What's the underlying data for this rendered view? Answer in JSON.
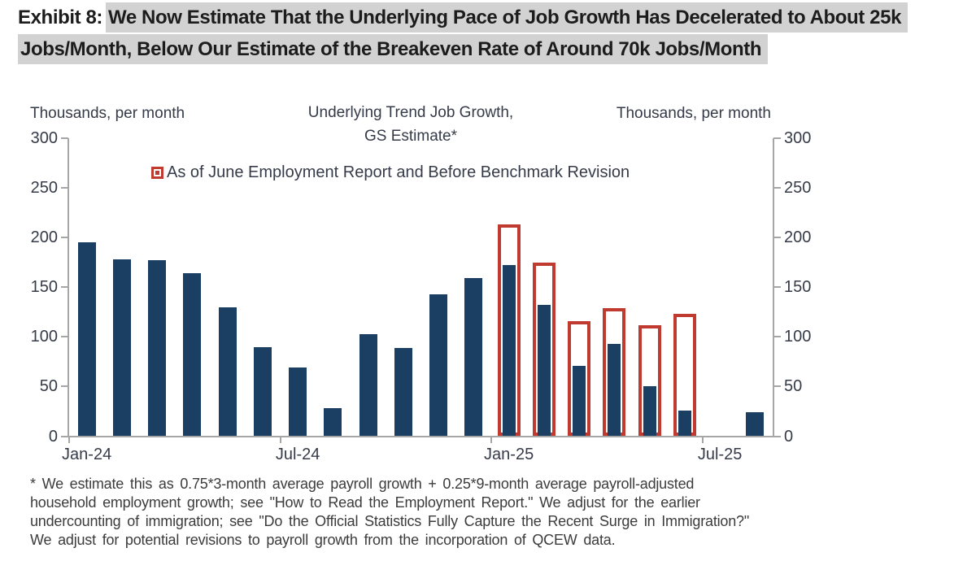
{
  "header": {
    "exhibit_label": "Exhibit 8:",
    "headline_line1": "We Now Estimate That the Underlying Pace of Job Growth Has Decelerated to About 25k",
    "headline_line2": "Jobs/Month, Below Our Estimate of the Breakeven Rate of Around 70k Jobs/Month"
  },
  "chart": {
    "title_line1": "Underlying Trend Job Growth,",
    "title_line2": "GS Estimate*",
    "left_axis_title": "Thousands, per month",
    "right_axis_title": "Thousands, per month",
    "legend_label": "As of June Employment Report and Before Benchmark Revision"
  },
  "chart_data": {
    "type": "bar",
    "title": "Underlying Trend Job Growth, GS Estimate*",
    "ylabel": "Thousands, per month",
    "ylabel_right": "Thousands, per month",
    "ylim": [
      0,
      300
    ],
    "yticks": [
      0,
      50,
      100,
      150,
      200,
      250,
      300
    ],
    "grid": false,
    "legend_position": "top-center",
    "categories": [
      "Jan-24",
      "Feb-24",
      "Mar-24",
      "Apr-24",
      "May-24",
      "Jun-24",
      "Jul-24",
      "Aug-24",
      "Sep-24",
      "Oct-24",
      "Nov-24",
      "Dec-24",
      "Jan-25",
      "Feb-25",
      "Mar-25",
      "Apr-25",
      "May-25",
      "Jun-25",
      "Jul-25",
      "Aug-25"
    ],
    "xticks_shown": [
      "Jan-24",
      "Jul-24",
      "Jan-25",
      "Jul-25"
    ],
    "series": [
      {
        "name": "Underlying trend job growth, GS estimate (solid bars)",
        "style": "solid",
        "color": "#1a3f63",
        "values": [
          195,
          178,
          177,
          164,
          130,
          90,
          69,
          28,
          103,
          89,
          143,
          159,
          172,
          132,
          71,
          93,
          50,
          26,
          null,
          24
        ]
      },
      {
        "name": "As of June Employment Report and Before Benchmark Revision",
        "style": "outline",
        "color": "#c03a2f",
        "values": [
          null,
          null,
          null,
          null,
          null,
          null,
          null,
          null,
          null,
          null,
          null,
          null,
          213,
          175,
          116,
          129,
          112,
          123,
          null,
          null
        ]
      }
    ]
  },
  "footnote": {
    "lines": [
      "* We estimate this as 0.75*3-month average payroll growth + 0.25*9-month average payroll-adjusted",
      "household employment growth; see \"How to Read the Employment Report.\" We adjust for the earlier",
      "undercounting of immigration; see \"Do the Official Statistics Fully Capture the Recent Surge in Immigration?\"",
      "We adjust for potential revisions to payroll growth from the incorporation of QCEW data."
    ]
  },
  "colors": {
    "bar_navy": "#1a3f63",
    "outline_red": "#c03a2f",
    "title_highlight": "#d2d2d2",
    "axis_line": "#a6a6a6",
    "chart_text": "#353b48",
    "footnote_text": "#3c3c3c",
    "headline_text": "#1c1c1c"
  }
}
